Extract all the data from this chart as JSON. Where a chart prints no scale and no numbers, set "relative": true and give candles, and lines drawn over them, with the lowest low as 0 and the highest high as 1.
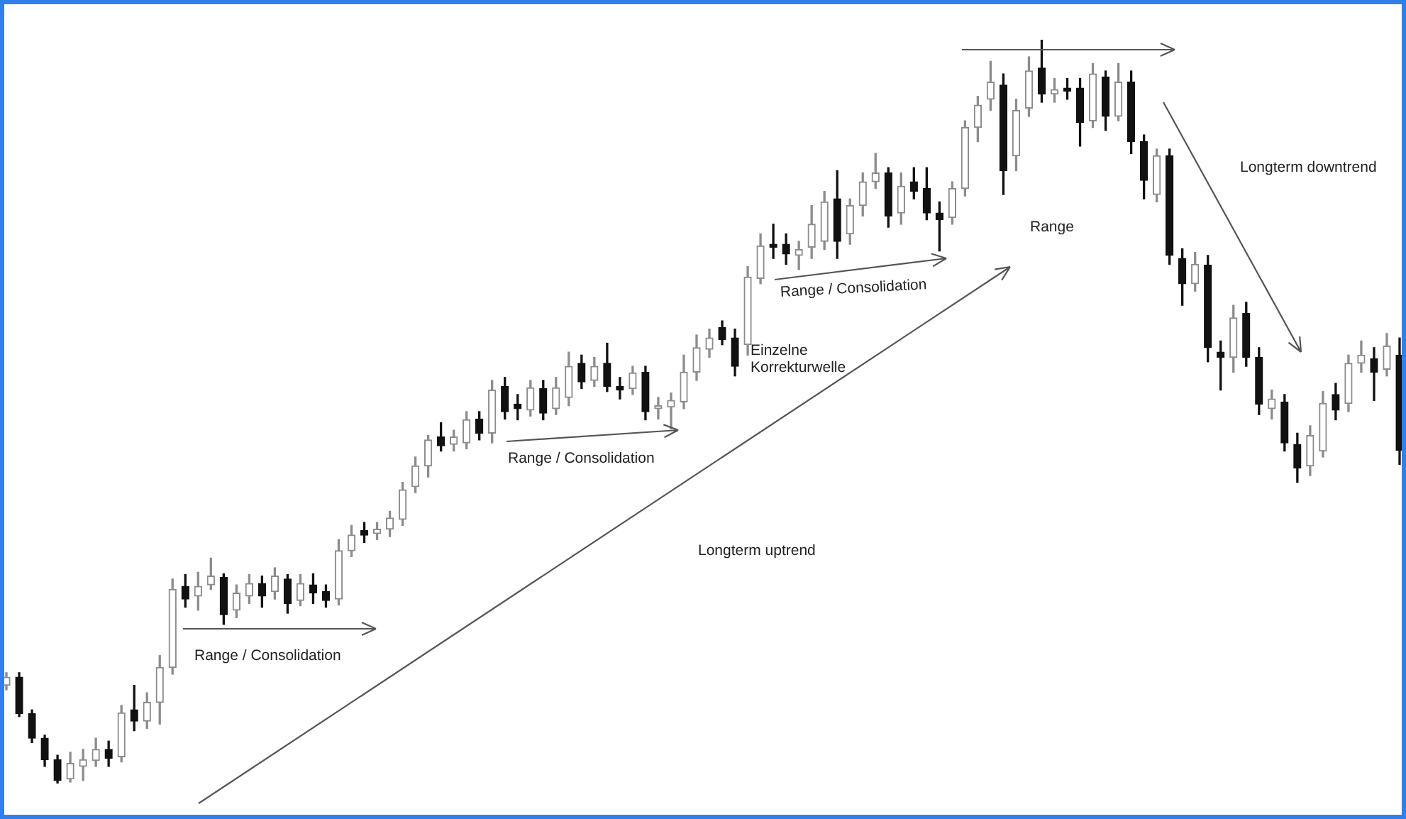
{
  "chart_data": {
    "type": "candlestick",
    "relative": true,
    "categories": [
      null,
      null,
      null,
      null,
      null,
      null,
      null,
      null,
      null,
      null,
      null,
      null,
      null,
      null,
      null,
      null,
      null,
      null,
      null,
      null,
      null,
      null,
      null,
      null,
      null,
      null,
      null,
      null,
      null,
      null,
      null,
      null,
      null,
      null,
      null,
      null,
      null,
      null,
      null,
      null,
      null,
      null,
      null,
      null,
      null,
      null,
      null,
      null,
      null,
      null,
      null,
      null,
      null,
      null,
      null,
      null,
      null,
      null,
      null,
      null,
      null,
      null,
      null,
      null,
      null,
      null,
      null,
      null,
      null,
      null,
      null,
      null,
      null,
      null,
      null,
      null,
      null,
      null,
      null,
      null,
      null,
      null,
      null,
      null,
      null,
      null,
      null,
      null,
      null,
      null,
      null,
      null,
      null,
      null,
      null,
      null,
      null,
      null,
      null,
      null,
      null,
      null,
      null,
      null,
      null,
      null,
      null,
      null,
      null,
      null
    ],
    "ohlc": [
      [
        0.132,
        0.149,
        0.126,
        0.143
      ],
      [
        0.143,
        0.149,
        0.09,
        0.094
      ],
      [
        0.094,
        0.099,
        0.055,
        0.061
      ],
      [
        0.061,
        0.065,
        0.023,
        0.032
      ],
      [
        0.032,
        0.038,
        0,
        0.004
      ],
      [
        0.006,
        0.042,
        0.002,
        0.027
      ],
      [
        0.023,
        0.046,
        0.004,
        0.032
      ],
      [
        0.031,
        0.061,
        0.023,
        0.046
      ],
      [
        0.046,
        0.057,
        0.023,
        0.034
      ],
      [
        0.036,
        0.105,
        0.029,
        0.095
      ],
      [
        0.099,
        0.132,
        0.071,
        0.084
      ],
      [
        0.084,
        0.122,
        0.074,
        0.109
      ],
      [
        0.109,
        0.172,
        0.08,
        0.156
      ],
      [
        0.156,
        0.275,
        0.147,
        0.261
      ],
      [
        0.265,
        0.281,
        0.237,
        0.248
      ],
      [
        0.252,
        0.284,
        0.233,
        0.265
      ],
      [
        0.267,
        0.303,
        0.261,
        0.279
      ],
      [
        0.277,
        0.282,
        0.214,
        0.227
      ],
      [
        0.233,
        0.267,
        0.223,
        0.256
      ],
      [
        0.252,
        0.281,
        0.242,
        0.269
      ],
      [
        0.269,
        0.279,
        0.237,
        0.252
      ],
      [
        0.258,
        0.29,
        0.248,
        0.279
      ],
      [
        0.275,
        0.281,
        0.229,
        0.242
      ],
      [
        0.246,
        0.281,
        0.239,
        0.269
      ],
      [
        0.267,
        0.282,
        0.242,
        0.256
      ],
      [
        0.258,
        0.267,
        0.237,
        0.246
      ],
      [
        0.248,
        0.328,
        0.24,
        0.313
      ],
      [
        0.313,
        0.347,
        0.305,
        0.334
      ],
      [
        0.34,
        0.351,
        0.324,
        0.334
      ],
      [
        0.336,
        0.351,
        0.328,
        0.342
      ],
      [
        0.342,
        0.366,
        0.332,
        0.357
      ],
      [
        0.355,
        0.405,
        0.347,
        0.395
      ],
      [
        0.399,
        0.439,
        0.391,
        0.427
      ],
      [
        0.427,
        0.468,
        0.412,
        0.462
      ],
      [
        0.466,
        0.485,
        0.447,
        0.454
      ],
      [
        0.456,
        0.475,
        0.447,
        0.466
      ],
      [
        0.458,
        0.5,
        0.45,
        0.489
      ],
      [
        0.49,
        0.5,
        0.462,
        0.471
      ],
      [
        0.471,
        0.542,
        0.458,
        0.529
      ],
      [
        0.534,
        0.546,
        0.49,
        0.5
      ],
      [
        0.51,
        0.523,
        0.489,
        0.504
      ],
      [
        0.502,
        0.542,
        0.494,
        0.532
      ],
      [
        0.531,
        0.542,
        0.489,
        0.498
      ],
      [
        0.504,
        0.546,
        0.496,
        0.532
      ],
      [
        0.519,
        0.58,
        0.508,
        0.561
      ],
      [
        0.565,
        0.576,
        0.531,
        0.54
      ],
      [
        0.542,
        0.573,
        0.534,
        0.561
      ],
      [
        0.565,
        0.592,
        0.527,
        0.534
      ],
      [
        0.534,
        0.546,
        0.517,
        0.529
      ],
      [
        0.531,
        0.561,
        0.523,
        0.552
      ],
      [
        0.553,
        0.561,
        0.489,
        0.5
      ],
      [
        0.504,
        0.519,
        0.49,
        0.508
      ],
      [
        0.506,
        0.525,
        0.477,
        0.515
      ],
      [
        0.513,
        0.576,
        0.504,
        0.553
      ],
      [
        0.553,
        0.603,
        0.542,
        0.586
      ],
      [
        0.584,
        0.611,
        0.573,
        0.599
      ],
      [
        0.613,
        0.622,
        0.59,
        0.597
      ],
      [
        0.599,
        0.611,
        0.548,
        0.561
      ],
      [
        0.59,
        0.695,
        0.576,
        0.681
      ],
      [
        0.679,
        0.739,
        0.672,
        0.723
      ],
      [
        0.725,
        0.752,
        0.706,
        0.721
      ],
      [
        0.725,
        0.739,
        0.698,
        0.712
      ],
      [
        0.71,
        0.729,
        0.691,
        0.718
      ],
      [
        0.721,
        0.777,
        0.706,
        0.752
      ],
      [
        0.729,
        0.796,
        0.718,
        0.782
      ],
      [
        0.786,
        0.824,
        0.706,
        0.729
      ],
      [
        0.739,
        0.786,
        0.725,
        0.777
      ],
      [
        0.777,
        0.821,
        0.763,
        0.809
      ],
      [
        0.809,
        0.847,
        0.8,
        0.821
      ],
      [
        0.821,
        0.828,
        0.748,
        0.763
      ],
      [
        0.767,
        0.821,
        0.752,
        0.803
      ],
      [
        0.809,
        0.828,
        0.786,
        0.796
      ],
      [
        0.8,
        0.828,
        0.758,
        0.767
      ],
      [
        0.767,
        0.782,
        0.716,
        0.758
      ],
      [
        0.761,
        0.809,
        0.752,
        0.8
      ],
      [
        0.8,
        0.891,
        0.79,
        0.882
      ],
      [
        0.882,
        0.924,
        0.863,
        0.912
      ],
      [
        0.92,
        0.971,
        0.905,
        0.943
      ],
      [
        0.939,
        0.954,
        0.792,
        0.824
      ],
      [
        0.844,
        0.92,
        0.824,
        0.905
      ],
      [
        0.908,
        0.977,
        0.897,
        0.958
      ],
      [
        0.962,
        1,
        0.916,
        0.927
      ],
      [
        0.927,
        0.948,
        0.916,
        0.933
      ],
      [
        0.935,
        0.948,
        0.92,
        0.931
      ],
      [
        0.935,
        0.948,
        0.857,
        0.889
      ],
      [
        0.891,
        0.968,
        0.882,
        0.954
      ],
      [
        0.95,
        0.958,
        0.878,
        0.897
      ],
      [
        0.897,
        0.968,
        0.891,
        0.943
      ],
      [
        0.943,
        0.958,
        0.847,
        0.863
      ],
      [
        0.863,
        0.872,
        0.786,
        0.811
      ],
      [
        0.792,
        0.853,
        0.782,
        0.844
      ],
      [
        0.844,
        0.853,
        0.698,
        0.71
      ],
      [
        0.706,
        0.719,
        0.643,
        0.672
      ],
      [
        0.672,
        0.714,
        0.662,
        0.698
      ],
      [
        0.697,
        0.71,
        0.567,
        0.586
      ],
      [
        0.58,
        0.595,
        0.529,
        0.573
      ],
      [
        0.573,
        0.643,
        0.553,
        0.626
      ],
      [
        0.632,
        0.647,
        0.561,
        0.573
      ],
      [
        0.573,
        0.586,
        0.496,
        0.51
      ],
      [
        0.504,
        0.529,
        0.49,
        0.517
      ],
      [
        0.513,
        0.523,
        0.447,
        0.458
      ],
      [
        0.456,
        0.471,
        0.405,
        0.424
      ],
      [
        0.427,
        0.481,
        0.414,
        0.468
      ],
      [
        0.447,
        0.527,
        0.439,
        0.511
      ],
      [
        0.523,
        0.538,
        0.489,
        0.502
      ],
      [
        0.511,
        0.576,
        0.5,
        0.565
      ],
      [
        0.565,
        0.595,
        0.553,
        0.576
      ],
      [
        0.571,
        0.586,
        0.515,
        0.553
      ],
      [
        0.557,
        0.605,
        0.548,
        0.588
      ],
      [
        0.576,
        0.599,
        0.429,
        0.448
      ]
    ],
    "colors": [
      "#8c8c8c",
      "#111111",
      "#111111",
      "#111111",
      "#111111",
      "#8c8c8c",
      "#8c8c8c",
      "#8c8c8c",
      "#111111",
      "#8c8c8c",
      "#111111",
      "#8c8c8c",
      "#8c8c8c",
      "#8c8c8c",
      "#111111",
      "#8c8c8c",
      "#8c8c8c",
      "#111111",
      "#8c8c8c",
      "#8c8c8c",
      "#111111",
      "#8c8c8c",
      "#111111",
      "#8c8c8c",
      "#111111",
      "#111111",
      "#8c8c8c",
      "#8c8c8c",
      "#111111",
      "#8c8c8c",
      "#8c8c8c",
      "#8c8c8c",
      "#8c8c8c",
      "#8c8c8c",
      "#111111",
      "#8c8c8c",
      "#8c8c8c",
      "#111111",
      "#8c8c8c",
      "#111111",
      "#111111",
      "#8c8c8c",
      "#111111",
      "#8c8c8c",
      "#8c8c8c",
      "#111111",
      "#8c8c8c",
      "#111111",
      "#111111",
      "#8c8c8c",
      "#111111",
      "#8c8c8c",
      "#8c8c8c",
      "#8c8c8c",
      "#8c8c8c",
      "#8c8c8c",
      "#111111",
      "#111111",
      "#8c8c8c",
      "#8c8c8c",
      "#111111",
      "#111111",
      "#8c8c8c",
      "#8c8c8c",
      "#8c8c8c",
      "#111111",
      "#8c8c8c",
      "#8c8c8c",
      "#8c8c8c",
      "#111111",
      "#8c8c8c",
      "#111111",
      "#111111",
      "#111111",
      "#8c8c8c",
      "#8c8c8c",
      "#8c8c8c",
      "#8c8c8c",
      "#111111",
      "#8c8c8c",
      "#8c8c8c",
      "#111111",
      "#8c8c8c",
      "#111111",
      "#111111",
      "#8c8c8c",
      "#111111",
      "#8c8c8c",
      "#111111",
      "#111111",
      "#8c8c8c",
      "#111111",
      "#111111",
      "#8c8c8c",
      "#111111",
      "#111111",
      "#8c8c8c",
      "#111111",
      "#111111",
      "#8c8c8c",
      "#111111",
      "#111111",
      "#8c8c8c",
      "#8c8c8c",
      "#111111",
      "#8c8c8c",
      "#8c8c8c",
      "#111111",
      "#8c8c8c",
      "#111111"
    ],
    "annotations": [
      "Range / Consolidation",
      "Range / Consolidation",
      "Einzelne Korrekturwelle",
      "Range / Consolidation",
      "Range",
      "Longterm downtrend",
      "Longterm uptrend"
    ]
  }
}
